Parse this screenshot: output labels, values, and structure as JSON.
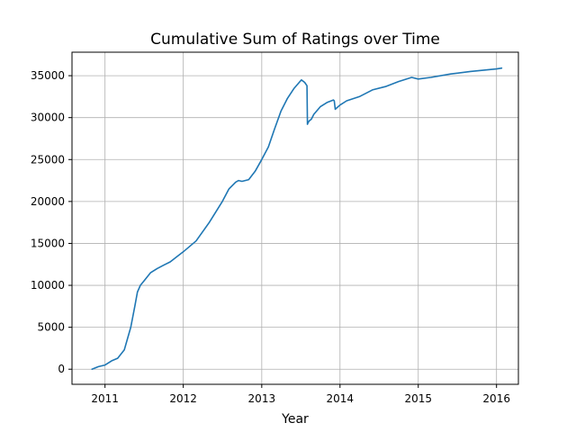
{
  "chart_data": {
    "type": "line",
    "title": "Cumulative Sum of Ratings over Time",
    "xlabel": "Year",
    "ylabel": "",
    "x_range": [
      "2010-07-31",
      "2016-04-12"
    ],
    "xlim": [
      "2010-07-31",
      "2016-04-12"
    ],
    "ylim": [
      -1800,
      37800
    ],
    "grid": true,
    "legend": null,
    "series_color": "#1f77b4",
    "x_ticks": [
      {
        "date": "2011-01-01",
        "label": "2011"
      },
      {
        "date": "2012-01-01",
        "label": "2012"
      },
      {
        "date": "2013-01-01",
        "label": "2013"
      },
      {
        "date": "2014-01-01",
        "label": "2014"
      },
      {
        "date": "2015-01-01",
        "label": "2015"
      },
      {
        "date": "2016-01-01",
        "label": "2016"
      }
    ],
    "y_ticks": [
      {
        "value": 0,
        "label": "0"
      },
      {
        "value": 5000,
        "label": "5000"
      },
      {
        "value": 10000,
        "label": "10000"
      },
      {
        "value": 15000,
        "label": "15000"
      },
      {
        "value": 20000,
        "label": "20000"
      },
      {
        "value": 25000,
        "label": "25000"
      },
      {
        "value": 30000,
        "label": "30000"
      },
      {
        "value": 35000,
        "label": "35000"
      }
    ],
    "series": [
      {
        "name": "",
        "x": [
          "2010-11-01",
          "2010-12-01",
          "2011-01-01",
          "2011-02-01",
          "2011-03-01",
          "2011-04-01",
          "2011-05-01",
          "2011-05-20",
          "2011-06-01",
          "2011-06-15",
          "2011-07-01",
          "2011-08-01",
          "2011-09-01",
          "2011-10-01",
          "2011-11-01",
          "2011-12-01",
          "2012-01-01",
          "2012-03-01",
          "2012-05-01",
          "2012-07-01",
          "2012-08-01",
          "2012-09-01",
          "2012-09-15",
          "2012-10-01",
          "2012-11-01",
          "2012-12-01",
          "2013-01-01",
          "2013-02-01",
          "2013-03-01",
          "2013-04-01",
          "2013-05-01",
          "2013-06-01",
          "2013-06-25",
          "2013-07-05",
          "2013-07-20",
          "2013-07-31",
          "2013-08-02",
          "2013-08-05",
          "2013-08-10",
          "2013-08-20",
          "2013-09-01",
          "2013-10-01",
          "2013-11-01",
          "2013-12-01",
          "2013-12-05",
          "2013-12-10",
          "2014-01-01",
          "2014-02-01",
          "2014-04-01",
          "2014-06-01",
          "2014-08-01",
          "2014-10-01",
          "2014-12-01",
          "2015-01-01",
          "2015-03-01",
          "2015-06-01",
          "2015-09-01",
          "2016-01-01",
          "2016-01-25"
        ],
        "y": [
          0,
          300,
          500,
          1000,
          1300,
          2300,
          5000,
          7500,
          9200,
          10000,
          10500,
          11500,
          12000,
          12400,
          12800,
          13400,
          14000,
          15300,
          17500,
          20000,
          21500,
          22300,
          22500,
          22400,
          22600,
          23600,
          25000,
          26500,
          28600,
          30800,
          32300,
          33500,
          34200,
          34500,
          34200,
          33800,
          29200,
          29400,
          29600,
          29800,
          30400,
          31300,
          31800,
          32100,
          32000,
          31000,
          31500,
          32000,
          32500,
          33300,
          33700,
          34300,
          34800,
          34600,
          34800,
          35200,
          35500,
          35800,
          35900
        ]
      }
    ]
  }
}
